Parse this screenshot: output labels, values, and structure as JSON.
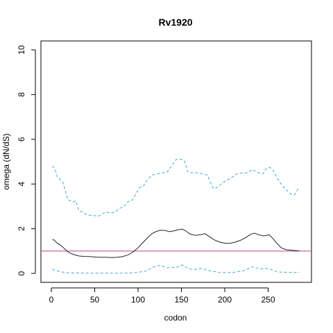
{
  "chart_data": {
    "type": "line",
    "title": "Rv1920",
    "xlabel": "codon",
    "ylabel": "omega (dN/dS)",
    "xlim": [
      -12,
      300
    ],
    "ylim": [
      -0.4,
      10.4
    ],
    "xticks": [
      0,
      50,
      100,
      150,
      200,
      250
    ],
    "yticks": [
      0,
      2,
      4,
      6,
      8,
      10
    ],
    "reference_line": {
      "y": 1,
      "color": "#b4438f"
    },
    "series": [
      {
        "style": "solid",
        "color": "#222222",
        "points": [
          [
            1,
            1.5
          ],
          [
            3,
            1.5
          ],
          [
            6,
            1.38
          ],
          [
            10,
            1.28
          ],
          [
            14,
            1.15
          ],
          [
            18,
            1.0
          ],
          [
            22,
            0.9
          ],
          [
            27,
            0.83
          ],
          [
            32,
            0.78
          ],
          [
            38,
            0.76
          ],
          [
            45,
            0.75
          ],
          [
            52,
            0.73
          ],
          [
            58,
            0.72
          ],
          [
            64,
            0.72
          ],
          [
            70,
            0.71
          ],
          [
            76,
            0.72
          ],
          [
            82,
            0.75
          ],
          [
            88,
            0.82
          ],
          [
            94,
            0.95
          ],
          [
            100,
            1.15
          ],
          [
            106,
            1.4
          ],
          [
            111,
            1.6
          ],
          [
            116,
            1.78
          ],
          [
            121,
            1.88
          ],
          [
            126,
            1.93
          ],
          [
            131,
            1.92
          ],
          [
            136,
            1.87
          ],
          [
            141,
            1.9
          ],
          [
            146,
            1.95
          ],
          [
            151,
            1.98
          ],
          [
            155,
            1.9
          ],
          [
            160,
            1.76
          ],
          [
            166,
            1.7
          ],
          [
            172,
            1.73
          ],
          [
            177,
            1.78
          ],
          [
            182,
            1.65
          ],
          [
            188,
            1.5
          ],
          [
            194,
            1.4
          ],
          [
            200,
            1.35
          ],
          [
            206,
            1.35
          ],
          [
            212,
            1.4
          ],
          [
            218,
            1.48
          ],
          [
            224,
            1.6
          ],
          [
            230,
            1.75
          ],
          [
            234,
            1.8
          ],
          [
            240,
            1.72
          ],
          [
            245,
            1.68
          ],
          [
            251,
            1.73
          ],
          [
            255,
            1.58
          ],
          [
            260,
            1.35
          ],
          [
            265,
            1.15
          ],
          [
            270,
            1.07
          ],
          [
            276,
            1.04
          ],
          [
            282,
            1.02
          ],
          [
            286,
            1.01
          ]
        ]
      },
      {
        "style": "dashed",
        "color": "#3aa8d8",
        "points": [
          [
            1,
            4.8
          ],
          [
            4,
            4.7
          ],
          [
            7,
            4.3
          ],
          [
            10,
            4.2
          ],
          [
            13,
            4.1
          ],
          [
            16,
            3.7
          ],
          [
            19,
            3.3
          ],
          [
            25,
            3.2
          ],
          [
            28,
            3.25
          ],
          [
            32,
            2.8
          ],
          [
            36,
            2.75
          ],
          [
            42,
            2.6
          ],
          [
            48,
            2.6
          ],
          [
            54,
            2.55
          ],
          [
            58,
            2.65
          ],
          [
            63,
            2.75
          ],
          [
            68,
            2.7
          ],
          [
            74,
            2.75
          ],
          [
            78,
            2.9
          ],
          [
            84,
            3.0
          ],
          [
            88,
            3.2
          ],
          [
            94,
            3.3
          ],
          [
            98,
            3.6
          ],
          [
            102,
            3.85
          ],
          [
            106,
            3.9
          ],
          [
            111,
            4.2
          ],
          [
            116,
            4.4
          ],
          [
            122,
            4.45
          ],
          [
            128,
            4.5
          ],
          [
            134,
            4.55
          ],
          [
            140,
            4.9
          ],
          [
            144,
            5.1
          ],
          [
            150,
            5.1
          ],
          [
            154,
            5.0
          ],
          [
            157,
            4.55
          ],
          [
            162,
            4.5
          ],
          [
            168,
            4.5
          ],
          [
            174,
            4.45
          ],
          [
            180,
            4.4
          ],
          [
            183,
            4.1
          ],
          [
            187,
            3.8
          ],
          [
            192,
            3.85
          ],
          [
            197,
            4.05
          ],
          [
            202,
            4.15
          ],
          [
            208,
            4.3
          ],
          [
            214,
            4.45
          ],
          [
            220,
            4.5
          ],
          [
            226,
            4.5
          ],
          [
            232,
            4.65
          ],
          [
            236,
            4.55
          ],
          [
            240,
            4.5
          ],
          [
            244,
            4.45
          ],
          [
            248,
            4.7
          ],
          [
            252,
            4.75
          ],
          [
            256,
            4.6
          ],
          [
            260,
            4.3
          ],
          [
            264,
            4.05
          ],
          [
            268,
            3.85
          ],
          [
            272,
            3.7
          ],
          [
            276,
            3.55
          ],
          [
            280,
            3.5
          ],
          [
            284,
            3.75
          ],
          [
            286,
            3.85
          ]
        ]
      },
      {
        "style": "dashed",
        "color": "#3aa8d8",
        "points": [
          [
            1,
            0.18
          ],
          [
            4,
            0.15
          ],
          [
            8,
            0.1
          ],
          [
            14,
            0.05
          ],
          [
            20,
            0.03
          ],
          [
            30,
            0.02
          ],
          [
            45,
            0.01
          ],
          [
            60,
            0.01
          ],
          [
            75,
            0.01
          ],
          [
            90,
            0.02
          ],
          [
            100,
            0.05
          ],
          [
            108,
            0.1
          ],
          [
            114,
            0.2
          ],
          [
            118,
            0.28
          ],
          [
            123,
            0.35
          ],
          [
            128,
            0.33
          ],
          [
            133,
            0.25
          ],
          [
            138,
            0.28
          ],
          [
            142,
            0.26
          ],
          [
            147,
            0.3
          ],
          [
            151,
            0.38
          ],
          [
            155,
            0.28
          ],
          [
            160,
            0.2
          ],
          [
            166,
            0.18
          ],
          [
            172,
            0.22
          ],
          [
            176,
            0.2
          ],
          [
            182,
            0.12
          ],
          [
            188,
            0.08
          ],
          [
            194,
            0.05
          ],
          [
            200,
            0.04
          ],
          [
            210,
            0.05
          ],
          [
            220,
            0.1
          ],
          [
            228,
            0.22
          ],
          [
            232,
            0.3
          ],
          [
            236,
            0.25
          ],
          [
            242,
            0.2
          ],
          [
            248,
            0.22
          ],
          [
            253,
            0.18
          ],
          [
            258,
            0.1
          ],
          [
            264,
            0.06
          ],
          [
            272,
            0.05
          ],
          [
            280,
            0.05
          ],
          [
            286,
            0.05
          ]
        ]
      }
    ]
  }
}
